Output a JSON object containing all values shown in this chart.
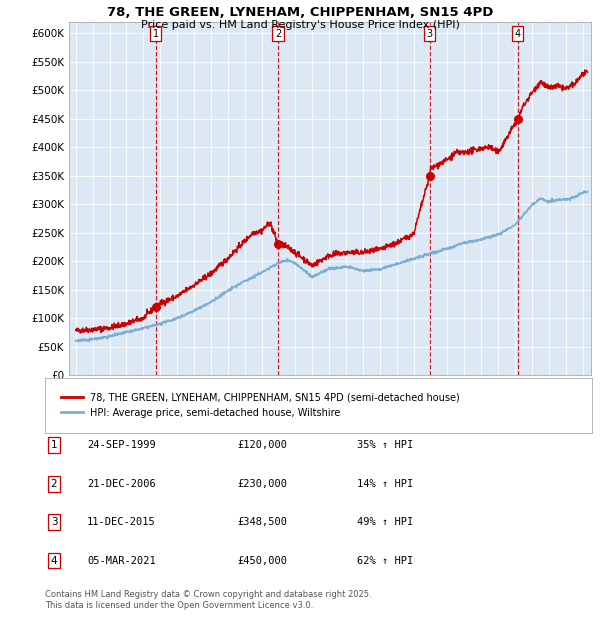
{
  "title": "78, THE GREEN, LYNEHAM, CHIPPENHAM, SN15 4PD",
  "subtitle": "Price paid vs. HM Land Registry's House Price Index (HPI)",
  "plot_bg_color": "#dce9f5",
  "red_line_color": "#cc0000",
  "blue_line_color": "#7eadd4",
  "ylim": [
    0,
    620000
  ],
  "yticks": [
    0,
    50000,
    100000,
    150000,
    200000,
    250000,
    300000,
    350000,
    400000,
    450000,
    500000,
    550000,
    600000
  ],
  "ytick_labels": [
    "£0",
    "£50K",
    "£100K",
    "£150K",
    "£200K",
    "£250K",
    "£300K",
    "£350K",
    "£400K",
    "£450K",
    "£500K",
    "£550K",
    "£600K"
  ],
  "sale_dates_num": [
    1999.73,
    2006.97,
    2015.94,
    2021.17
  ],
  "sale_prices": [
    120000,
    230000,
    348500,
    450000
  ],
  "sale_labels": [
    "1",
    "2",
    "3",
    "4"
  ],
  "vline_color": "#cc0000",
  "marker_color": "#cc0000",
  "legend_label_red": "78, THE GREEN, LYNEHAM, CHIPPENHAM, SN15 4PD (semi-detached house)",
  "legend_label_blue": "HPI: Average price, semi-detached house, Wiltshire",
  "table_data": [
    [
      "1",
      "24-SEP-1999",
      "£120,000",
      "35% ↑ HPI"
    ],
    [
      "2",
      "21-DEC-2006",
      "£230,000",
      "14% ↑ HPI"
    ],
    [
      "3",
      "11-DEC-2015",
      "£348,500",
      "49% ↑ HPI"
    ],
    [
      "4",
      "05-MAR-2021",
      "£450,000",
      "62% ↑ HPI"
    ]
  ],
  "footer": "Contains HM Land Registry data © Crown copyright and database right 2025.\nThis data is licensed under the Open Government Licence v3.0.",
  "red_anchors_x": [
    1995.0,
    1996.0,
    1997.0,
    1998.0,
    1999.0,
    1999.73,
    2000.0,
    2001.0,
    2002.0,
    2003.0,
    2004.0,
    2005.0,
    2005.5,
    2006.0,
    2006.5,
    2006.97,
    2007.0,
    2007.5,
    2008.0,
    2009.0,
    2010.0,
    2011.0,
    2012.0,
    2013.0,
    2014.0,
    2015.0,
    2015.94,
    2016.0,
    2017.0,
    2017.5,
    2018.0,
    2019.0,
    2019.5,
    2020.0,
    2021.17,
    2021.5,
    2022.0,
    2022.5,
    2023.0,
    2023.5,
    2024.0,
    2024.5,
    2025.0,
    2025.3
  ],
  "red_anchors_y": [
    78000,
    80000,
    83000,
    90000,
    100000,
    120000,
    126000,
    138000,
    158000,
    178000,
    205000,
    235000,
    250000,
    253000,
    268000,
    230000,
    232000,
    225000,
    215000,
    192000,
    210000,
    215000,
    215000,
    220000,
    232000,
    248000,
    348500,
    362000,
    378000,
    390000,
    390000,
    398000,
    400000,
    390000,
    450000,
    473000,
    495000,
    515000,
    503000,
    507000,
    502000,
    510000,
    528000,
    530000
  ],
  "blue_anchors_x": [
    1995.0,
    1996.0,
    1997.0,
    1998.0,
    1999.0,
    2000.0,
    2001.0,
    2002.0,
    2003.0,
    2004.0,
    2005.0,
    2006.0,
    2007.0,
    2007.5,
    2008.0,
    2009.0,
    2010.0,
    2011.0,
    2012.0,
    2013.0,
    2014.0,
    2015.0,
    2016.0,
    2017.0,
    2018.0,
    2019.0,
    2020.0,
    2021.0,
    2022.0,
    2022.5,
    2023.0,
    2023.5,
    2024.0,
    2024.5,
    2025.0,
    2025.3
  ],
  "blue_anchors_y": [
    60000,
    63000,
    68000,
    75000,
    82000,
    90000,
    100000,
    113000,
    128000,
    148000,
    165000,
    180000,
    197000,
    202000,
    196000,
    172000,
    187000,
    190000,
    183000,
    186000,
    195000,
    204000,
    213000,
    222000,
    232000,
    238000,
    246000,
    264000,
    298000,
    310000,
    305000,
    307000,
    308000,
    312000,
    320000,
    322000
  ]
}
